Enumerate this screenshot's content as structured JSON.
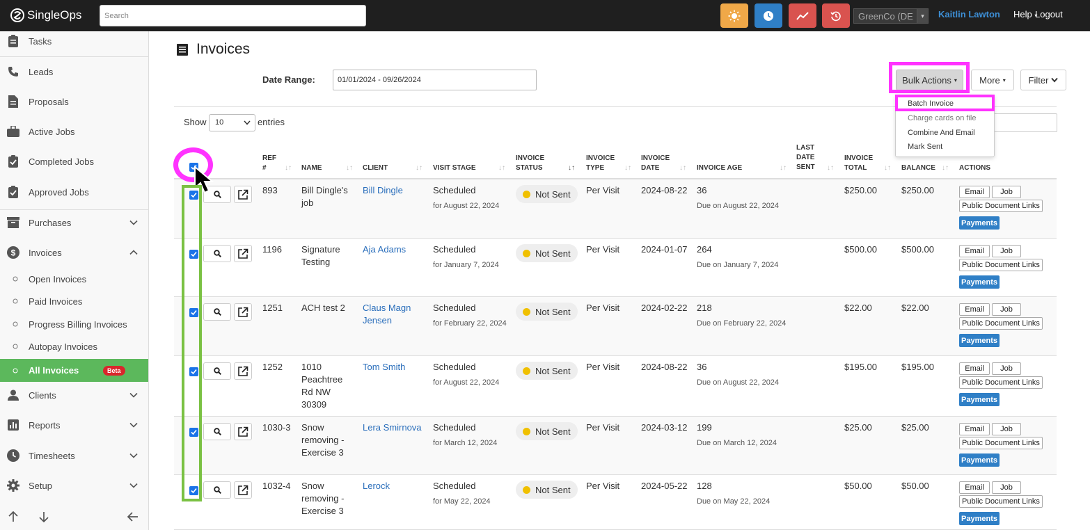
{
  "app": {
    "name": "SingleOps"
  },
  "topbar": {
    "search_placeholder": "Search",
    "tenant": "GreenCo (DE",
    "user": "Kaitlin Lawton",
    "help": "Help",
    "logout": "Logout",
    "colors": {
      "sun": "#f0a848",
      "clock": "#2f7fc6",
      "chart": "#d9534f",
      "history": "#d9534f"
    }
  },
  "sidebar": {
    "items": [
      {
        "label": "Tasks",
        "icon": "clipboard-icon"
      },
      {
        "label": "Leads",
        "icon": "phone-icon"
      },
      {
        "label": "Proposals",
        "icon": "document-icon"
      },
      {
        "label": "Active Jobs",
        "icon": "briefcase-icon"
      },
      {
        "label": "Completed Jobs",
        "icon": "clipboard-check-icon"
      },
      {
        "label": "Approved Jobs",
        "icon": "clipboard-check-icon"
      },
      {
        "label": "Purchases",
        "icon": "archive-icon"
      },
      {
        "label": "Invoices",
        "icon": "dollar-icon"
      },
      {
        "label": "Clients",
        "icon": "person-icon"
      },
      {
        "label": "Reports",
        "icon": "bar-chart-icon"
      },
      {
        "label": "Timesheets",
        "icon": "clock-icon"
      },
      {
        "label": "Setup",
        "icon": "gear-icon"
      }
    ],
    "invoice_sub": [
      "Open Invoices",
      "Paid Invoices",
      "Progress Billing Invoices",
      "Autopay Invoices",
      "All Invoices"
    ],
    "beta": "Beta",
    "active_color": "#5cb85c"
  },
  "page": {
    "title": "Invoices",
    "date_range_label": "Date Range:",
    "date_range_value": "01/01/2024 - 09/26/2024",
    "bulk_actions": "Bulk Actions",
    "more": "More",
    "filter": "Filter",
    "bulk_menu": [
      "Batch Invoice",
      "Charge cards on file",
      "Combine And Email",
      "Mark Sent"
    ],
    "show": "Show",
    "show_value": "10",
    "entries": "entries"
  },
  "table": {
    "headers": {
      "ref": [
        "REF",
        "#"
      ],
      "name": "NAME",
      "client": "CLIENT",
      "visit_stage": "VISIT STAGE",
      "invoice_status": [
        "INVOICE",
        "STATUS"
      ],
      "invoice_type": [
        "INVOICE",
        "TYPE"
      ],
      "invoice_date": [
        "INVOICE",
        "DATE"
      ],
      "invoice_age": "INVOICE AGE",
      "last_date_sent": [
        "LAST",
        "DATE",
        "SENT"
      ],
      "invoice_total": [
        "INVOICE",
        "TOTAL"
      ],
      "balance": "BALANCE",
      "actions": "ACTIONS"
    },
    "action_labels": {
      "email": "Email",
      "job": "Job",
      "links": "Public Document Links",
      "payments": "Payments"
    },
    "rows": [
      {
        "ref": "893",
        "name": [
          "Bill Dingle's",
          "job"
        ],
        "client": [
          "Bill Dingle"
        ],
        "stage": "Scheduled",
        "stage_sub": "for August 22, 2024",
        "status": "Not Sent",
        "type": "Per Visit",
        "date": "2024-08-22",
        "age": "36",
        "due": "Due on August 22, 2024",
        "total": "$250.00",
        "balance": "$250.00"
      },
      {
        "ref": "1196",
        "name": [
          "Signature",
          "Testing"
        ],
        "client": [
          "Aja Adams"
        ],
        "stage": "Scheduled",
        "stage_sub": "for January 7, 2024",
        "status": "Not Sent",
        "type": "Per Visit",
        "date": "2024-01-07",
        "age": "264",
        "due": "Due on January 7, 2024",
        "total": "$500.00",
        "balance": "$500.00"
      },
      {
        "ref": "1251",
        "name": [
          "ACH test 2"
        ],
        "client": [
          "Claus Magn",
          "Jensen"
        ],
        "stage": "Scheduled",
        "stage_sub": "for February 22, 2024",
        "status": "Not Sent",
        "type": "Per Visit",
        "date": "2024-02-22",
        "age": "218",
        "due": "Due on February 22, 2024",
        "total": "$22.00",
        "balance": "$22.00"
      },
      {
        "ref": "1252",
        "name": [
          "1010",
          "Peachtree",
          "Rd NW",
          "30309"
        ],
        "client": [
          "Tom Smith"
        ],
        "stage": "Scheduled",
        "stage_sub": "for August 22, 2024",
        "status": "Not Sent",
        "type": "Per Visit",
        "date": "2024-08-22",
        "age": "36",
        "due": "Due on August 22, 2024",
        "total": "$195.00",
        "balance": "$195.00"
      },
      {
        "ref": "1030-3",
        "name": [
          "Snow",
          "removing -",
          "Exercise 3"
        ],
        "client": [
          "Lera Smirnova"
        ],
        "stage": "Scheduled",
        "stage_sub": "for March 12, 2024",
        "status": "Not Sent",
        "type": "Per Visit",
        "date": "2024-03-12",
        "age": "199",
        "due": "Due on March 12, 2024",
        "total": "$25.00",
        "balance": "$25.00"
      },
      {
        "ref": "1032-4",
        "name": [
          "Snow",
          "removing -",
          "Exercise 3"
        ],
        "client": [
          "Lerock"
        ],
        "stage": "Scheduled",
        "stage_sub": "for May 22, 2024",
        "status": "Not Sent",
        "type": "Per Visit",
        "date": "2024-05-22",
        "age": "128",
        "due": "Due on May 22, 2024",
        "total": "$50.00",
        "balance": "$50.00"
      }
    ]
  }
}
